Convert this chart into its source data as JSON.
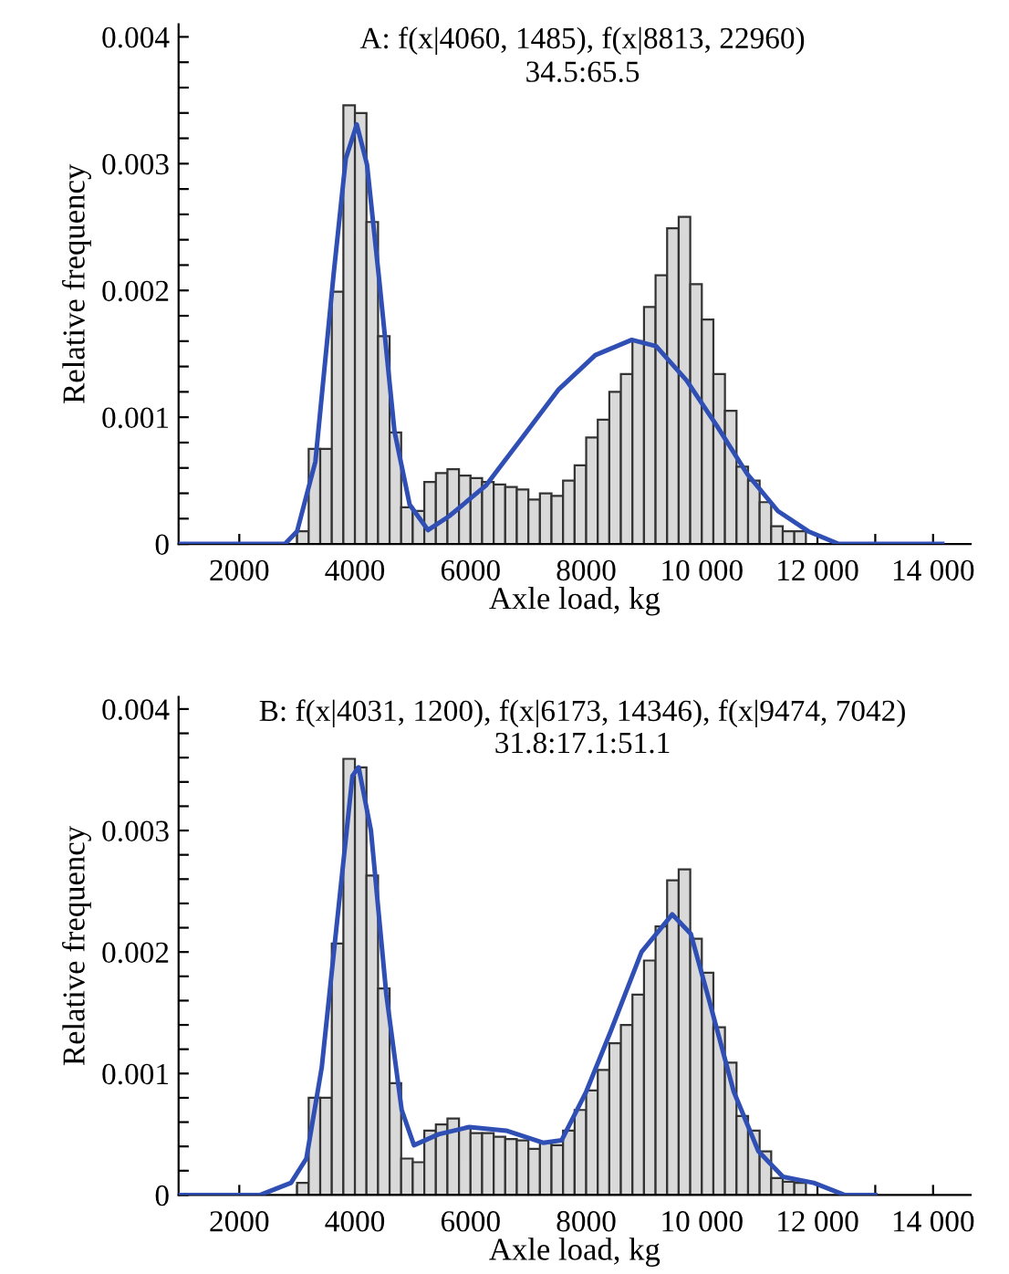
{
  "chart_data": [
    {
      "type": "histogram",
      "title": "A: f(x|4060, 1485), f(x|8813, 22960)",
      "subtitle": "34.5:65.5",
      "xlabel": "Axle load, kg",
      "ylabel": "Relative frequency",
      "bins": [
        3000,
        3200,
        3400,
        3600,
        3800,
        4000,
        4200,
        4400,
        4600,
        4800,
        5000,
        5200,
        5400,
        5600,
        5800,
        6000,
        6200,
        6400,
        6600,
        6800,
        7000,
        7200,
        7400,
        7600,
        7800,
        8000,
        8200,
        8400,
        8600,
        8800,
        9000,
        9200,
        9400,
        9600,
        9800,
        10000,
        10200,
        10400,
        10600,
        10800,
        11000,
        11200,
        11400,
        11600,
        11800
      ],
      "series": [
        {
          "color": "#d9d9d9",
          "values": [
            0.0001,
            0.00075,
            0.00075,
            0.00199,
            0.00346,
            0.0034,
            0.00254,
            0.00164,
            0.00088,
            0.00029,
            0.00026,
            0.00049,
            0.00056,
            0.00059,
            0.00054,
            0.00052,
            0.00049,
            0.00047,
            0.00045,
            0.00043,
            0.00035,
            0.0004,
            0.00038,
            0.0005,
            0.00062,
            0.00084,
            0.00098,
            0.0012,
            0.00134,
            0.0016,
            0.00187,
            0.00212,
            0.00249,
            0.00258,
            0.00205,
            0.00177,
            0.00134,
            0.00105,
            0.00061,
            0.0005,
            0.00033,
            0.00014,
            0.0001,
            0.0001
          ]
        },
        {
          "type": "line",
          "color": "#2f4fb5",
          "x": [
            950,
            2790,
            3000,
            3316,
            3632,
            3842,
            4032,
            4210,
            4421,
            4684,
            4947,
            5263,
            5632,
            6263,
            6895,
            7526,
            8158,
            8789,
            9211,
            9737,
            10263,
            10789,
            11316,
            11842,
            12368,
            12895,
            14158
          ],
          "values": [
            0,
            0,
            0.0001,
            0.00065,
            0.00213,
            0.00304,
            0.00331,
            0.00299,
            0.00208,
            0.00089,
            0.00031,
            0.00011,
            0.00022,
            0.00046,
            0.00084,
            0.00122,
            0.00149,
            0.00161,
            0.00156,
            0.00129,
            0.00093,
            0.00055,
            0.00026,
            0.0001,
            0,
            0,
            0
          ]
        }
      ],
      "xlim": [
        950,
        14650
      ],
      "ylim": [
        0,
        0.0041
      ],
      "xticks": [
        {
          "value": 2000,
          "label": "2000"
        },
        {
          "value": 3000,
          "label": null
        },
        {
          "value": 4000,
          "label": "4000"
        },
        {
          "value": 5000,
          "label": null
        },
        {
          "value": 6000,
          "label": "6000"
        },
        {
          "value": 7000,
          "label": null
        },
        {
          "value": 8000,
          "label": "8000"
        },
        {
          "value": 9000,
          "label": null
        },
        {
          "value": 10000,
          "label": "10 000"
        },
        {
          "value": 11000,
          "label": null
        },
        {
          "value": 12000,
          "label": "12 000"
        },
        {
          "value": 13000,
          "label": null
        },
        {
          "value": 14000,
          "label": "14 000"
        }
      ],
      "yticks": [
        0,
        {
          "value": 0.0002,
          "label": null
        },
        {
          "value": 0.0004,
          "label": null
        },
        {
          "value": 0.0006,
          "label": null
        },
        {
          "value": 0.0008,
          "label": null
        },
        0.001,
        {
          "value": 0.0012,
          "label": null
        },
        {
          "value": 0.0014,
          "label": null
        },
        {
          "value": 0.0016,
          "label": null
        },
        {
          "value": 0.0018,
          "label": null
        },
        0.002,
        {
          "value": 0.0022,
          "label": null
        },
        {
          "value": 0.0024,
          "label": null
        },
        {
          "value": 0.0026,
          "label": null
        },
        {
          "value": 0.0028,
          "label": null
        },
        0.003,
        {
          "value": 0.0032,
          "label": null
        },
        {
          "value": 0.0034,
          "label": null
        },
        {
          "value": 0.0036,
          "label": null
        },
        {
          "value": 0.0038,
          "label": null
        },
        0.004
      ],
      "grid": false,
      "legend": false
    },
    {
      "type": "histogram",
      "title": "B: f(x|4031, 1200), f(x|6173, 14346), f(x|9474, 7042)",
      "subtitle": "31.8:17.1:51.1",
      "xlabel": "Axle load, kg",
      "ylabel": "Relative frequency",
      "bins": [
        3000,
        3200,
        3400,
        3600,
        3800,
        4000,
        4200,
        4400,
        4600,
        4800,
        5000,
        5200,
        5400,
        5600,
        5800,
        6000,
        6200,
        6400,
        6600,
        6800,
        7000,
        7200,
        7400,
        7600,
        7800,
        8000,
        8200,
        8400,
        8600,
        8800,
        9000,
        9200,
        9400,
        9600,
        9800,
        10000,
        10200,
        10400,
        10600,
        10800,
        11000,
        11200,
        11400,
        11600,
        11800
      ],
      "series": [
        {
          "color": "#d9d9d9",
          "values": [
            0.0001,
            0.0008,
            0.0008,
            0.00207,
            0.00359,
            0.00352,
            0.00263,
            0.0017,
            0.00092,
            0.0003,
            0.00027,
            0.00053,
            0.00058,
            0.00063,
            0.00055,
            0.00051,
            0.00051,
            0.00048,
            0.00046,
            0.00045,
            0.00038,
            0.00043,
            0.00041,
            0.00053,
            0.0007,
            0.00086,
            0.00103,
            0.00125,
            0.0014,
            0.00165,
            0.00193,
            0.00221,
            0.00259,
            0.00268,
            0.00211,
            0.00183,
            0.00138,
            0.00109,
            0.00065,
            0.00053,
            0.00036,
            0.00014,
            0.00011,
            0.0001
          ]
        },
        {
          "type": "line",
          "color": "#2f4fb5",
          "x": [
            950,
            2362,
            2894,
            3160,
            3426,
            3691,
            3957,
            4064,
            4277,
            4543,
            4809,
            5021,
            5447,
            5979,
            6617,
            7255,
            7574,
            8000,
            8426,
            8957,
            9489,
            9809,
            10128,
            10553,
            10979,
            11404,
            11936,
            12468,
            13000
          ],
          "values": [
            0,
            0,
            0.0001,
            0.0003,
            0.00105,
            0.00225,
            0.00345,
            0.00352,
            0.003,
            0.00165,
            0.0007,
            0.00041,
            0.0005,
            0.00056,
            0.00053,
            0.00043,
            0.00045,
            0.00085,
            0.00135,
            0.002,
            0.00231,
            0.00215,
            0.0016,
            0.00085,
            0.00036,
            0.00015,
            0.0001,
            0,
            0
          ]
        }
      ],
      "xlim": [
        950,
        14650
      ],
      "ylim": [
        0,
        0.0041
      ],
      "xticks": [
        {
          "value": 2000,
          "label": "2000"
        },
        {
          "value": 3000,
          "label": null
        },
        {
          "value": 4000,
          "label": "4000"
        },
        {
          "value": 5000,
          "label": null
        },
        {
          "value": 6000,
          "label": "6000"
        },
        {
          "value": 7000,
          "label": null
        },
        {
          "value": 8000,
          "label": "8000"
        },
        {
          "value": 9000,
          "label": null
        },
        {
          "value": 10000,
          "label": "10 000"
        },
        {
          "value": 11000,
          "label": null
        },
        {
          "value": 12000,
          "label": "12 000"
        },
        {
          "value": 13000,
          "label": null
        },
        {
          "value": 14000,
          "label": "14 000"
        }
      ],
      "yticks": [
        0,
        {
          "value": 0.0002,
          "label": null
        },
        {
          "value": 0.0004,
          "label": null
        },
        {
          "value": 0.0006,
          "label": null
        },
        {
          "value": 0.0008,
          "label": null
        },
        0.001,
        {
          "value": 0.0012,
          "label": null
        },
        {
          "value": 0.0014,
          "label": null
        },
        {
          "value": 0.0016,
          "label": null
        },
        {
          "value": 0.0018,
          "label": null
        },
        0.002,
        {
          "value": 0.0022,
          "label": null
        },
        {
          "value": 0.0024,
          "label": null
        },
        {
          "value": 0.0026,
          "label": null
        },
        {
          "value": 0.0028,
          "label": null
        },
        0.003,
        {
          "value": 0.0032,
          "label": null
        },
        {
          "value": 0.0034,
          "label": null
        },
        {
          "value": 0.0036,
          "label": null
        },
        {
          "value": 0.0038,
          "label": null
        },
        0.004
      ],
      "grid": false,
      "legend": false
    }
  ]
}
